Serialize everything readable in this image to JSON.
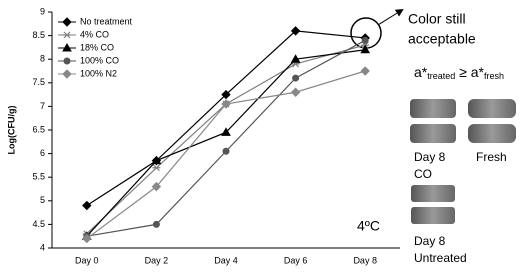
{
  "chart_data": {
    "type": "line",
    "y_label": "Log(CFU/g)",
    "categories": [
      "Day 0",
      "Day 2",
      "Day 4",
      "Day 6",
      "Day 8"
    ],
    "series": [
      {
        "name": "No treatment",
        "color": "#000000",
        "marker": "diamond",
        "values": [
          4.9,
          5.85,
          7.25,
          8.6,
          8.45
        ]
      },
      {
        "name": "4% CO",
        "color": "#808080",
        "marker": "star",
        "values": [
          4.3,
          5.7,
          7.05,
          7.9,
          8.3
        ]
      },
      {
        "name": "18% CO",
        "color": "#000000",
        "marker": "triangle",
        "values": [
          4.25,
          5.85,
          6.45,
          8.0,
          8.2
        ]
      },
      {
        "name": "100% CO",
        "color": "#555555",
        "marker": "circle",
        "values": [
          4.25,
          4.5,
          6.05,
          7.6,
          8.4
        ]
      },
      {
        "name": "100% N2",
        "color": "#888888",
        "marker": "diamond",
        "values": [
          4.2,
          5.3,
          7.05,
          7.3,
          7.75
        ]
      }
    ],
    "ylim": [
      4,
      9
    ],
    "yticks": [
      4,
      4.5,
      5,
      5.5,
      6,
      6.5,
      7,
      7.5,
      8,
      8.5,
      9
    ],
    "annotations": {
      "temperature": "4ºC",
      "color_note": [
        "Color still",
        "acceptable"
      ],
      "formula": [
        "a*",
        "treated",
        " ≥ a*",
        "fresh"
      ],
      "sample_labels": {
        "day8_co": [
          "Day 8",
          "CO"
        ],
        "fresh": "Fresh",
        "day8_untreated": [
          "Day 8",
          "Untreated"
        ]
      }
    }
  }
}
